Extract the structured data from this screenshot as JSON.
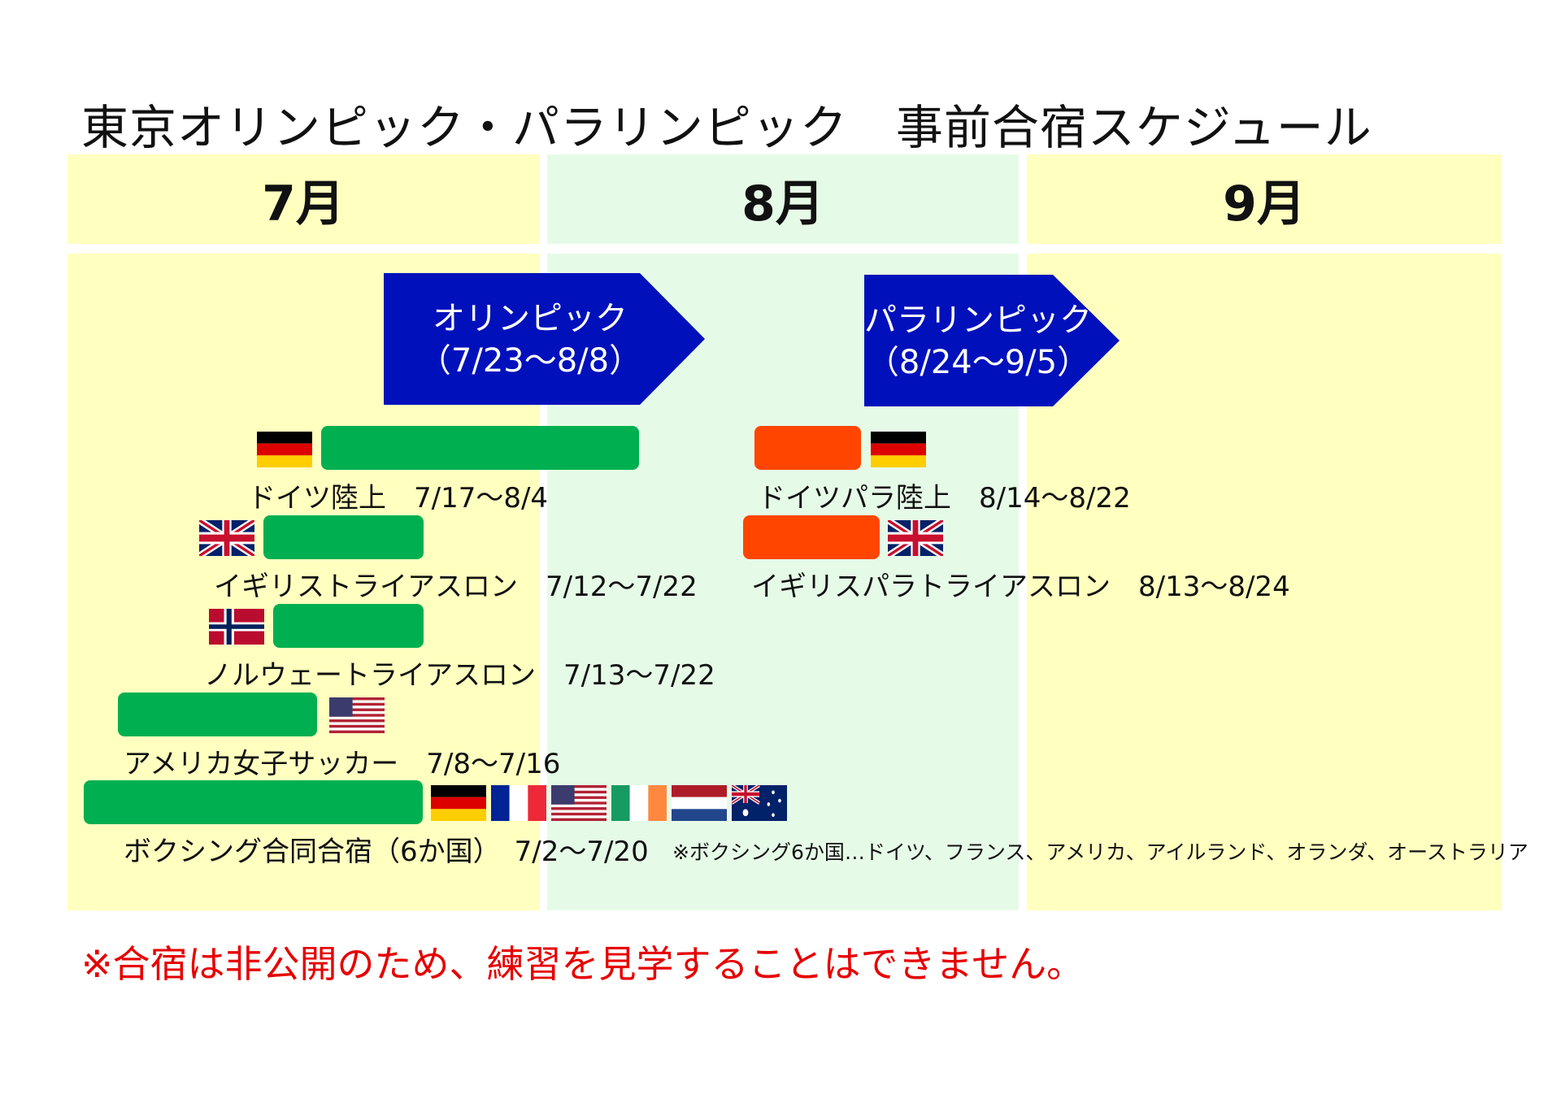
{
  "title": "東京オリンピック・パラリンピック　事前合宿スケジュール",
  "months": [
    "7月",
    "8月",
    "9月"
  ],
  "events": {
    "olympic": {
      "name": "オリンピック",
      "dates": "（7/23～8/8）"
    },
    "paralympic": {
      "name": "パラリンピック",
      "dates": "（8/24～9/5）"
    }
  },
  "camps": [
    {
      "label": "ドイツ陸上　7/17～8/4",
      "flags": [
        "germany"
      ],
      "bar_color": "#00b050"
    },
    {
      "label": "イギリストライアスロン　7/12～7/22",
      "flags": [
        "uk"
      ],
      "bar_color": "#00b050"
    },
    {
      "label": "ノルウェートライアスロン　7/13～7/22",
      "flags": [
        "norway"
      ],
      "bar_color": "#00b050"
    },
    {
      "label": "アメリカ女子サッカー　7/8～7/16",
      "flags": [
        "usa"
      ],
      "bar_color": "#00b050"
    },
    {
      "label": "ボクシング合同合宿（6か国）　7/2～7/20",
      "flags": [
        "germany",
        "france",
        "usa",
        "ireland",
        "netherlands",
        "australia"
      ],
      "bar_color": "#00b050"
    },
    {
      "label": "ドイツパラ陸上　8/14～8/22",
      "flags": [
        "germany"
      ],
      "bar_color": "#ff4500"
    },
    {
      "label": "イギリスパラトライアスロン　8/13～8/24",
      "flags": [
        "uk"
      ],
      "bar_color": "#ff4500"
    }
  ],
  "boxing_note": "※ボクシング6か国…ドイツ、フランス、アメリカ、アイルランド、オランダ、オーストラリア",
  "warning": "※合宿は非公開のため、練習を見学することはできません。",
  "colors": {
    "month_bg_july": "#ffffc0",
    "month_bg_august": "#e6fbe7",
    "month_bg_september": "#ffffc0",
    "event_arrow": "#0011bb",
    "olympic_bar": "#00b050",
    "paralympic_bar": "#ff4500",
    "warning": "#e60000"
  }
}
